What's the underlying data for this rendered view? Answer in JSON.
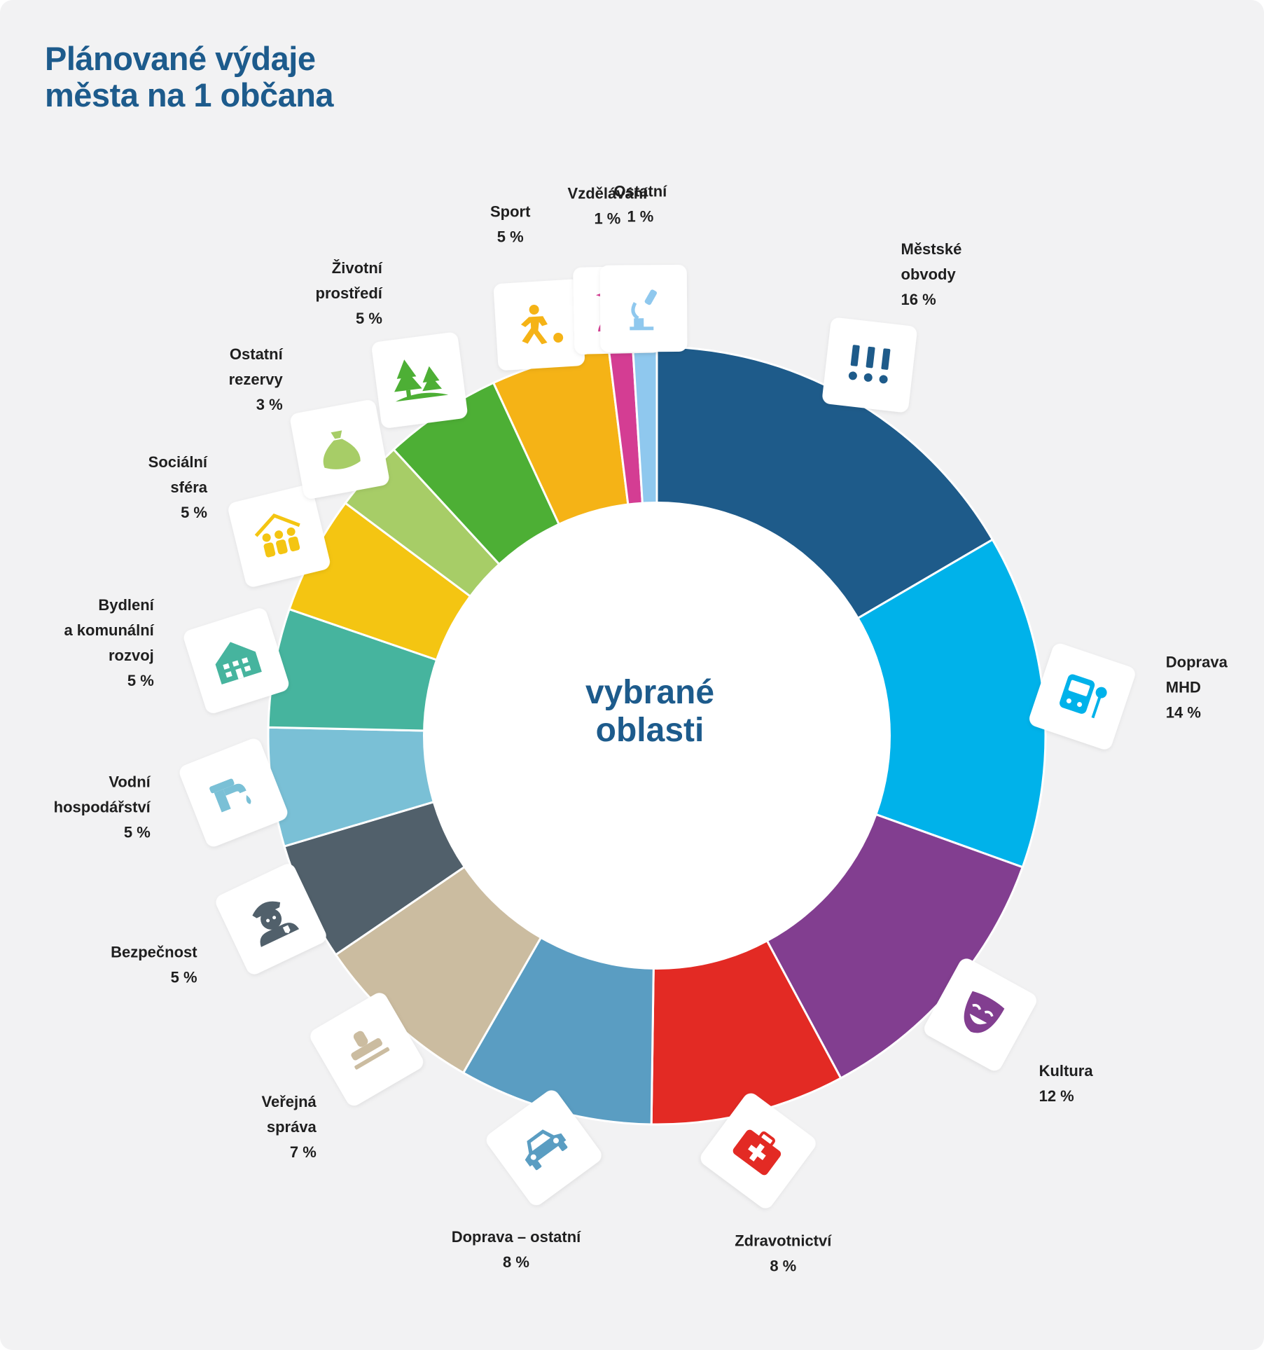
{
  "title": {
    "line1": "Plánované výdaje",
    "line2": "města na 1 občana"
  },
  "center_label": {
    "line1": "vybrané",
    "line2": "oblasti"
  },
  "chart_data": {
    "type": "pie",
    "variant": "donut",
    "title": "Plánované výdaje města na 1 občana",
    "center_text": "vybrané oblasti",
    "unit": "%",
    "slices": [
      {
        "label": "Městské obvody",
        "label_lines": [
          "Městské",
          "obvody"
        ],
        "pct_text": "16 %",
        "value": 18.5,
        "color": "#1e5b8a",
        "icon": "exclamation-marks-icon"
      },
      {
        "label": "Doprava MHD",
        "label_lines": [
          "Doprava",
          "MHD"
        ],
        "pct_text": "14 %",
        "value": 15.5,
        "color": "#00b2ea",
        "icon": "bus-stop-icon"
      },
      {
        "label": "Kultura",
        "label_lines": [
          "Kultura"
        ],
        "pct_text": "12 %",
        "value": 13.0,
        "color": "#823e90",
        "icon": "theater-mask-icon"
      },
      {
        "label": "Zdravotnictví",
        "label_lines": [
          "Zdravotnictví"
        ],
        "pct_text": "8 %",
        "value": 9.0,
        "color": "#e32a24",
        "icon": "first-aid-kit-icon"
      },
      {
        "label": "Doprava – ostatní",
        "label_lines": [
          "Doprava – ostatní"
        ],
        "pct_text": "8 %",
        "value": 9.0,
        "color": "#5a9dc2",
        "icon": "car-icon"
      },
      {
        "label": "Veřejná správa",
        "label_lines": [
          "Veřejná",
          "správa"
        ],
        "pct_text": "7 %",
        "value": 8.0,
        "color": "#cbbca0",
        "icon": "stamp-icon"
      },
      {
        "label": "Bezpečnost",
        "label_lines": [
          "Bezpečnost"
        ],
        "pct_text": "5 %",
        "value": 5.5,
        "color": "#51606b",
        "icon": "police-officer-icon"
      },
      {
        "label": "Vodní hospodářství",
        "label_lines": [
          "Vodní",
          "hospodářství"
        ],
        "pct_text": "5 %",
        "value": 5.5,
        "color": "#7ac0d6",
        "icon": "water-tap-icon"
      },
      {
        "label": "Bydlení a komunální rozvoj",
        "label_lines": [
          "Bydlení",
          "a komunální",
          "rozvoj"
        ],
        "pct_text": "5 %",
        "value": 5.5,
        "color": "#46b49e",
        "icon": "house-icon"
      },
      {
        "label": "Sociální sféra",
        "label_lines": [
          "Sociální",
          "sféra"
        ],
        "pct_text": "5 %",
        "value": 5.5,
        "color": "#f4c512",
        "icon": "family-shelter-icon"
      },
      {
        "label": "Ostatní rezervy",
        "label_lines": [
          "Ostatní",
          "rezervy"
        ],
        "pct_text": "3 %",
        "value": 3.3,
        "color": "#a7cd67",
        "icon": "money-bag-icon"
      },
      {
        "label": "Životní prostředí",
        "label_lines": [
          "Životní",
          "prostředí"
        ],
        "pct_text": "5 %",
        "value": 5.5,
        "color": "#4daf35",
        "icon": "trees-icon"
      },
      {
        "label": "Sport",
        "label_lines": [
          "Sport"
        ],
        "pct_text": "5 %",
        "value": 5.5,
        "color": "#f5b316",
        "icon": "running-player-icon"
      },
      {
        "label": "Vzdělávání",
        "label_lines": [
          "Vzdělávání"
        ],
        "pct_text": "1 %",
        "value": 1.1,
        "color": "#d43d93",
        "icon": "graduate-icon"
      },
      {
        "label": "Ostatní",
        "label_lines": [
          "Ostatní"
        ],
        "pct_text": "1 %",
        "value": 1.1,
        "color": "#8fc8ee",
        "icon": "microscope-icon"
      }
    ]
  }
}
